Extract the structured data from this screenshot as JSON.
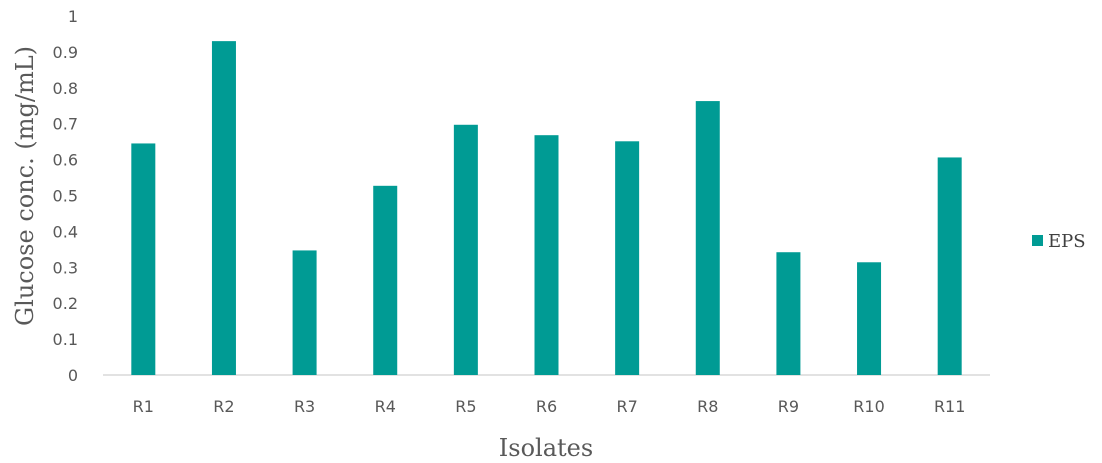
{
  "chart_data": {
    "type": "bar",
    "categories": [
      "R1",
      "R2",
      "R3",
      "R4",
      "R5",
      "R6",
      "R7",
      "R8",
      "R9",
      "R10",
      "R11"
    ],
    "series": [
      {
        "name": "EPS",
        "values": [
          0.645,
          0.93,
          0.347,
          0.527,
          0.697,
          0.668,
          0.651,
          0.763,
          0.342,
          0.314,
          0.606
        ]
      }
    ],
    "xlabel": "Isolates",
    "ylabel": "Glucose conc. (mg/mL)",
    "ylim": [
      0,
      1
    ],
    "yticks": [
      "0",
      "0.1",
      "0.2",
      "0.3",
      "0.4",
      "0.5",
      "0.6",
      "0.7",
      "0.8",
      "0.9",
      "1"
    ],
    "grid": false,
    "legend_position": "right",
    "colors": {
      "bar": "#009B94",
      "axis": "#D9D9D9"
    }
  }
}
